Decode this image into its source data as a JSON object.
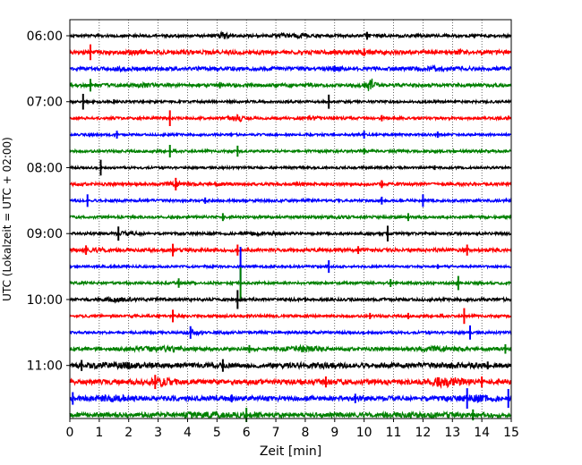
{
  "chart_data": {
    "type": "line",
    "title": "",
    "xlabel": "Zeit  [min]",
    "ylabel": "UTC (Lokalzeit = UTC + 02:00)",
    "xlim": [
      0,
      15
    ],
    "x_ticks": [
      0,
      1,
      2,
      3,
      4,
      5,
      6,
      7,
      8,
      9,
      10,
      11,
      12,
      13,
      14,
      15
    ],
    "x_tick_labels": [
      "0",
      "1",
      "2",
      "3",
      "4",
      "5",
      "6",
      "7",
      "8",
      "9",
      "10",
      "11",
      "12",
      "13",
      "14",
      "15"
    ],
    "y_tick_labels": [
      "06:00",
      "07:00",
      "08:00",
      "09:00",
      "10:00",
      "11:00"
    ],
    "y_tick_rows": [
      0,
      4,
      8,
      12,
      16,
      20
    ],
    "grid": "vertical dotted at every minute",
    "color_cycle": [
      "#000000",
      "#ff0000",
      "#0000ff",
      "#008000"
    ],
    "rows_start": "06:00",
    "minutes_per_row": 15,
    "rows": [
      {
        "start": "06:00",
        "color": "#000000",
        "base_amp": 0.18,
        "bursts": [
          {
            "x": 5.2,
            "amp": 0.45,
            "w": 0.35
          },
          {
            "x": 7.2,
            "amp": 0.35,
            "w": 0.4
          },
          {
            "x": 7.9,
            "amp": 0.4,
            "w": 0.4
          },
          {
            "x": 10.1,
            "amp": 0.3,
            "w": 0.25
          }
        ],
        "spikes": [
          {
            "x": 10.1,
            "amp": 0.5
          }
        ]
      },
      {
        "start": "06:15",
        "color": "#ff0000",
        "base_amp": 0.25,
        "bursts": [
          {
            "x": 2.0,
            "amp": 0.35,
            "w": 0.6
          },
          {
            "x": 10.0,
            "amp": 0.35,
            "w": 0.3
          },
          {
            "x": 13.2,
            "amp": 0.35,
            "w": 0.4
          }
        ],
        "spikes": [
          {
            "x": 0.7,
            "amp": 1.0
          },
          {
            "x": 10.0,
            "amp": 0.5
          }
        ]
      },
      {
        "start": "06:30",
        "color": "#0000ff",
        "base_amp": 0.22,
        "bursts": [
          {
            "x": 1.8,
            "amp": 0.35,
            "w": 0.6
          },
          {
            "x": 9.0,
            "amp": 0.35,
            "w": 0.6
          },
          {
            "x": 12.5,
            "amp": 0.4,
            "w": 0.6
          }
        ],
        "spikes": [
          {
            "x": 9.0,
            "amp": 0.4
          }
        ]
      },
      {
        "start": "06:45",
        "color": "#008000",
        "base_amp": 0.2,
        "bursts": [
          {
            "x": 2.5,
            "amp": 0.35,
            "w": 0.6
          },
          {
            "x": 10.2,
            "amp": 1.0,
            "w": 0.35
          }
        ],
        "spikes": [
          {
            "x": 0.7,
            "amp": 0.8
          },
          {
            "x": 5.1,
            "amp": 0.4
          }
        ]
      },
      {
        "start": "07:00",
        "color": "#000000",
        "base_amp": 0.15,
        "bursts": [],
        "spikes": [
          {
            "x": 0.45,
            "amp": 1.0
          },
          {
            "x": 8.8,
            "amp": 0.9
          },
          {
            "x": 1.5,
            "amp": 0.3
          }
        ]
      },
      {
        "start": "07:15",
        "color": "#ff0000",
        "base_amp": 0.16,
        "bursts": [
          {
            "x": 5.7,
            "amp": 0.45,
            "w": 0.5
          },
          {
            "x": 8.2,
            "amp": 0.3,
            "w": 0.5
          }
        ],
        "spikes": [
          {
            "x": 3.4,
            "amp": 1.0
          },
          {
            "x": 10.6,
            "amp": 0.4
          }
        ]
      },
      {
        "start": "07:30",
        "color": "#0000ff",
        "base_amp": 0.14,
        "bursts": [],
        "spikes": [
          {
            "x": 1.6,
            "amp": 0.5
          },
          {
            "x": 10.0,
            "amp": 0.5
          },
          {
            "x": 12.5,
            "amp": 0.4
          }
        ]
      },
      {
        "start": "07:45",
        "color": "#008000",
        "base_amp": 0.16,
        "bursts": [],
        "spikes": [
          {
            "x": 3.4,
            "amp": 0.8
          },
          {
            "x": 5.7,
            "amp": 0.7
          },
          {
            "x": 10.0,
            "amp": 0.4
          }
        ]
      },
      {
        "start": "08:00",
        "color": "#000000",
        "base_amp": 0.14,
        "bursts": [],
        "spikes": [
          {
            "x": 1.05,
            "amp": 1.0
          },
          {
            "x": 12.4,
            "amp": 0.3
          }
        ]
      },
      {
        "start": "08:15",
        "color": "#ff0000",
        "base_amp": 0.18,
        "bursts": [
          {
            "x": 3.6,
            "amp": 0.35,
            "w": 0.6
          },
          {
            "x": 5.0,
            "amp": 0.25,
            "w": 0.6
          }
        ],
        "spikes": [
          {
            "x": 3.6,
            "amp": 0.8
          },
          {
            "x": 10.6,
            "amp": 0.5
          }
        ]
      },
      {
        "start": "08:30",
        "color": "#0000ff",
        "base_amp": 0.16,
        "bursts": [],
        "spikes": [
          {
            "x": 0.6,
            "amp": 0.8
          },
          {
            "x": 4.6,
            "amp": 0.4
          },
          {
            "x": 10.6,
            "amp": 0.5
          },
          {
            "x": 12.0,
            "amp": 0.8
          }
        ]
      },
      {
        "start": "08:45",
        "color": "#008000",
        "base_amp": 0.16,
        "bursts": [
          {
            "x": 9.0,
            "amp": 0.25,
            "w": 1.0
          }
        ],
        "spikes": [
          {
            "x": 5.2,
            "amp": 0.5
          },
          {
            "x": 11.5,
            "amp": 0.5
          }
        ]
      },
      {
        "start": "09:00",
        "color": "#000000",
        "base_amp": 0.16,
        "bursts": [
          {
            "x": 2.0,
            "amp": 0.3,
            "w": 1.0
          },
          {
            "x": 6.5,
            "amp": 0.25,
            "w": 1.0
          }
        ],
        "spikes": [
          {
            "x": 1.65,
            "amp": 0.9
          },
          {
            "x": 10.8,
            "amp": 1.0
          }
        ]
      },
      {
        "start": "09:15",
        "color": "#ff0000",
        "base_amp": 0.2,
        "bursts": [
          {
            "x": 1.0,
            "amp": 0.3,
            "w": 1.0
          }
        ],
        "spikes": [
          {
            "x": 0.55,
            "amp": 0.6
          },
          {
            "x": 3.5,
            "amp": 0.8
          },
          {
            "x": 5.7,
            "amp": 0.7
          },
          {
            "x": 9.8,
            "amp": 0.5
          },
          {
            "x": 13.5,
            "amp": 0.7
          }
        ]
      },
      {
        "start": "09:30",
        "color": "#0000ff",
        "base_amp": 0.14,
        "bursts": [],
        "spikes": [
          {
            "x": 5.8,
            "amp": 2.5
          },
          {
            "x": 8.8,
            "amp": 0.8
          },
          {
            "x": 12.5,
            "amp": 0.3
          }
        ]
      },
      {
        "start": "09:45",
        "color": "#008000",
        "base_amp": 0.16,
        "bursts": [],
        "spikes": [
          {
            "x": 3.7,
            "amp": 0.6
          },
          {
            "x": 5.8,
            "amp": 2.0
          },
          {
            "x": 10.9,
            "amp": 0.5
          },
          {
            "x": 13.2,
            "amp": 0.9
          }
        ]
      },
      {
        "start": "10:00",
        "color": "#000000",
        "base_amp": 0.18,
        "bursts": [
          {
            "x": 1.5,
            "amp": 0.3,
            "w": 1.2
          }
        ],
        "spikes": [
          {
            "x": 5.7,
            "amp": 1.2
          },
          {
            "x": 8.0,
            "amp": 0.3
          }
        ]
      },
      {
        "start": "10:15",
        "color": "#ff0000",
        "base_amp": 0.16,
        "bursts": [],
        "spikes": [
          {
            "x": 3.5,
            "amp": 0.8
          },
          {
            "x": 10.2,
            "amp": 0.4
          },
          {
            "x": 11.5,
            "amp": 0.4
          },
          {
            "x": 13.4,
            "amp": 1.0
          }
        ]
      },
      {
        "start": "10:30",
        "color": "#0000ff",
        "base_amp": 0.16,
        "bursts": [
          {
            "x": 4.2,
            "amp": 0.3,
            "w": 0.6
          }
        ],
        "spikes": [
          {
            "x": 4.1,
            "amp": 0.8
          },
          {
            "x": 13.6,
            "amp": 0.9
          }
        ]
      },
      {
        "start": "10:45",
        "color": "#008000",
        "base_amp": 0.2,
        "bursts": [
          {
            "x": 3.0,
            "amp": 0.35,
            "w": 2.0
          },
          {
            "x": 8.0,
            "amp": 0.45,
            "w": 1.0
          },
          {
            "x": 12.5,
            "amp": 0.35,
            "w": 1.5
          }
        ],
        "spikes": [
          {
            "x": 6.1,
            "amp": 0.5
          },
          {
            "x": 14.8,
            "amp": 0.6
          }
        ]
      },
      {
        "start": "11:00",
        "color": "#000000",
        "base_amp": 0.3,
        "bursts": [
          {
            "x": 1.5,
            "amp": 0.45,
            "w": 2.0
          },
          {
            "x": 8.5,
            "amp": 0.4,
            "w": 1.5
          },
          {
            "x": 13.0,
            "amp": 0.4,
            "w": 1.2
          }
        ],
        "spikes": [
          {
            "x": 0.4,
            "amp": 0.7
          },
          {
            "x": 5.2,
            "amp": 0.8
          },
          {
            "x": 14.2,
            "amp": 0.5
          }
        ]
      },
      {
        "start": "11:15",
        "color": "#ff0000",
        "base_amp": 0.3,
        "bursts": [
          {
            "x": 3.2,
            "amp": 0.6,
            "w": 1.0
          },
          {
            "x": 12.8,
            "amp": 0.7,
            "w": 1.2
          },
          {
            "x": 9.0,
            "amp": 0.35,
            "w": 1.0
          }
        ],
        "spikes": [
          {
            "x": 2.9,
            "amp": 0.9
          },
          {
            "x": 8.7,
            "amp": 0.7
          },
          {
            "x": 12.5,
            "amp": 0.6
          },
          {
            "x": 14.0,
            "amp": 0.7
          }
        ]
      },
      {
        "start": "11:30",
        "color": "#0000ff",
        "base_amp": 0.3,
        "bursts": [
          {
            "x": 1.5,
            "amp": 0.5,
            "w": 1.0
          },
          {
            "x": 13.8,
            "amp": 0.5,
            "w": 1.0
          }
        ],
        "spikes": [
          {
            "x": 0.1,
            "amp": 0.8
          },
          {
            "x": 5.5,
            "amp": 0.5
          },
          {
            "x": 9.7,
            "amp": 0.6
          },
          {
            "x": 13.5,
            "amp": 1.3
          },
          {
            "x": 14.9,
            "amp": 1.2
          }
        ]
      },
      {
        "start": "11:45",
        "color": "#008000",
        "base_amp": 0.28,
        "bursts": [
          {
            "x": 4.5,
            "amp": 0.4,
            "w": 3.0
          },
          {
            "x": 12.0,
            "amp": 0.35,
            "w": 2.0
          }
        ],
        "spikes": [
          {
            "x": 6.0,
            "amp": 0.9
          },
          {
            "x": 13.7,
            "amp": 0.7
          }
        ]
      }
    ]
  }
}
